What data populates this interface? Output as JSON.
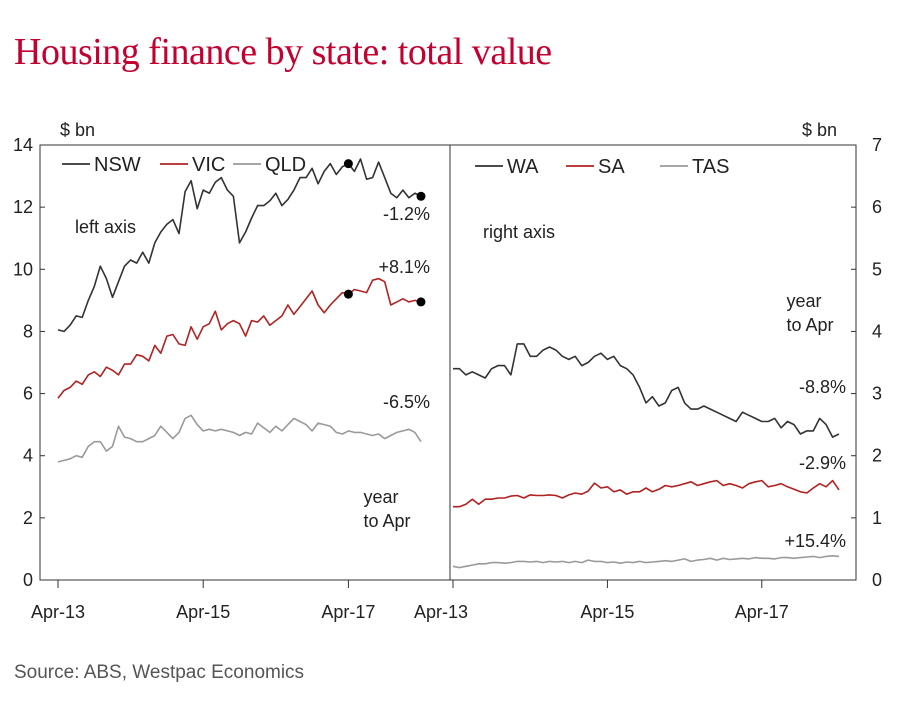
{
  "title": "Housing finance by state: total value",
  "source": "Source: ABS, Westpac Economics",
  "colors": {
    "title": "#c3002f",
    "dark": "#333333",
    "red": "#b22222",
    "grey": "#9a9a9a"
  },
  "chart_data": [
    {
      "type": "line",
      "panel": "left",
      "ylabel": "$ bn",
      "ylim": [
        0,
        14
      ],
      "yticks": [
        "0",
        "2",
        "4",
        "6",
        "8",
        "10",
        "12",
        "14"
      ],
      "xticks": [
        "Apr-13",
        "Apr-15",
        "Apr-17"
      ],
      "x_dates": [
        "Apr-13",
        "May-13",
        "Jun-13",
        "Jul-13",
        "Aug-13",
        "Sep-13",
        "Oct-13",
        "Nov-13",
        "Dec-13",
        "Jan-14",
        "Feb-14",
        "Mar-14",
        "Apr-14",
        "May-14",
        "Jun-14",
        "Jul-14",
        "Aug-14",
        "Sep-14",
        "Oct-14",
        "Nov-14",
        "Dec-14",
        "Jan-15",
        "Feb-15",
        "Mar-15",
        "Apr-15",
        "May-15",
        "Jun-15",
        "Jul-15",
        "Aug-15",
        "Sep-15",
        "Oct-15",
        "Nov-15",
        "Dec-15",
        "Jan-16",
        "Feb-16",
        "Mar-16",
        "Apr-16",
        "May-16",
        "Jun-16",
        "Jul-16",
        "Aug-16",
        "Sep-16",
        "Oct-16",
        "Nov-16",
        "Dec-16",
        "Jan-17",
        "Feb-17",
        "Mar-17",
        "Apr-17",
        "May-17",
        "Jun-17",
        "Jul-17",
        "Aug-17",
        "Sep-17",
        "Oct-17",
        "Nov-17",
        "Dec-17",
        "Jan-18",
        "Feb-18",
        "Mar-18",
        "Apr-18"
      ],
      "annotation_left": "left axis",
      "annotation_year": [
        "year",
        "to Apr"
      ],
      "series": [
        {
          "name": "NSW",
          "color": "#333333",
          "change_label": "-1.2%",
          "markers": [
            "Apr-17",
            "Apr-18"
          ],
          "values": [
            8.05,
            8.0,
            8.2,
            8.5,
            8.45,
            9.0,
            9.45,
            10.1,
            9.7,
            9.1,
            9.6,
            10.1,
            10.3,
            10.2,
            10.55,
            10.2,
            10.85,
            11.2,
            11.45,
            11.6,
            11.15,
            12.5,
            12.85,
            11.95,
            12.55,
            12.45,
            12.8,
            12.95,
            12.55,
            12.35,
            10.85,
            11.2,
            11.65,
            12.05,
            12.05,
            12.2,
            12.45,
            12.05,
            12.25,
            12.55,
            12.95,
            12.95,
            13.25,
            12.75,
            13.15,
            13.4,
            13.05,
            13.3,
            13.4,
            13.15,
            13.55,
            12.9,
            12.95,
            13.45,
            12.95,
            12.45,
            12.3,
            12.55,
            12.3,
            12.45,
            12.35
          ]
        },
        {
          "name": "VIC",
          "color": "#b22222",
          "change_label": "+8.1%",
          "markers": [
            "Apr-17",
            "Apr-18"
          ],
          "values": [
            5.85,
            6.1,
            6.2,
            6.4,
            6.3,
            6.6,
            6.7,
            6.55,
            6.85,
            6.75,
            6.6,
            6.95,
            6.95,
            7.25,
            7.2,
            7.05,
            7.55,
            7.3,
            7.85,
            7.9,
            7.6,
            7.55,
            8.15,
            7.75,
            8.15,
            8.25,
            8.65,
            8.05,
            8.25,
            8.35,
            8.25,
            7.85,
            8.35,
            8.3,
            8.5,
            8.2,
            8.35,
            8.5,
            8.85,
            8.55,
            8.8,
            9.05,
            9.3,
            8.85,
            8.6,
            8.85,
            9.05,
            9.25,
            9.2,
            9.35,
            9.3,
            9.25,
            9.65,
            9.7,
            9.6,
            8.85,
            8.95,
            9.05,
            8.95,
            9.0,
            8.95
          ]
        },
        {
          "name": "QLD",
          "color": "#9a9a9a",
          "change_label": "-6.5%",
          "values": [
            3.8,
            3.85,
            3.9,
            4.0,
            3.95,
            4.3,
            4.45,
            4.45,
            4.15,
            4.3,
            4.95,
            4.6,
            4.55,
            4.45,
            4.45,
            4.55,
            4.65,
            4.95,
            4.75,
            4.55,
            4.75,
            5.2,
            5.3,
            5.0,
            4.8,
            4.85,
            4.8,
            4.85,
            4.8,
            4.75,
            4.65,
            4.75,
            4.7,
            5.05,
            4.9,
            4.75,
            4.95,
            4.8,
            5.0,
            5.2,
            5.1,
            5.0,
            4.8,
            5.05,
            5.0,
            4.95,
            4.75,
            4.7,
            4.8,
            4.75,
            4.75,
            4.7,
            4.65,
            4.7,
            4.55,
            4.65,
            4.75,
            4.8,
            4.85,
            4.75,
            4.45
          ]
        }
      ]
    },
    {
      "type": "line",
      "panel": "right",
      "ylabel": "$ bn",
      "ylim": [
        0,
        7
      ],
      "yticks": [
        "0",
        "1",
        "2",
        "3",
        "4",
        "5",
        "6",
        "7"
      ],
      "xticks": [
        "Apr-13",
        "Apr-15",
        "Apr-17"
      ],
      "x_dates": [
        "Apr-13",
        "May-13",
        "Jun-13",
        "Jul-13",
        "Aug-13",
        "Sep-13",
        "Oct-13",
        "Nov-13",
        "Dec-13",
        "Jan-14",
        "Feb-14",
        "Mar-14",
        "Apr-14",
        "May-14",
        "Jun-14",
        "Jul-14",
        "Aug-14",
        "Sep-14",
        "Oct-14",
        "Nov-14",
        "Dec-14",
        "Jan-15",
        "Feb-15",
        "Mar-15",
        "Apr-15",
        "May-15",
        "Jun-15",
        "Jul-15",
        "Aug-15",
        "Sep-15",
        "Oct-15",
        "Nov-15",
        "Dec-15",
        "Jan-16",
        "Feb-16",
        "Mar-16",
        "Apr-16",
        "May-16",
        "Jun-16",
        "Jul-16",
        "Aug-16",
        "Sep-16",
        "Oct-16",
        "Nov-16",
        "Dec-16",
        "Jan-17",
        "Feb-17",
        "Mar-17",
        "Apr-17",
        "May-17",
        "Jun-17",
        "Jul-17",
        "Aug-17",
        "Sep-17",
        "Oct-17",
        "Nov-17",
        "Dec-17",
        "Jan-18",
        "Feb-18",
        "Mar-18",
        "Apr-18"
      ],
      "annotation_right": "right axis",
      "annotation_year": [
        "year",
        "to Apr"
      ],
      "series": [
        {
          "name": "WA",
          "color": "#333333",
          "change_label": "-8.8%",
          "values": [
            3.4,
            3.4,
            3.3,
            3.35,
            3.3,
            3.25,
            3.4,
            3.45,
            3.45,
            3.3,
            3.8,
            3.8,
            3.6,
            3.6,
            3.7,
            3.75,
            3.7,
            3.6,
            3.55,
            3.6,
            3.45,
            3.5,
            3.6,
            3.65,
            3.55,
            3.6,
            3.45,
            3.4,
            3.3,
            3.1,
            2.85,
            2.95,
            2.8,
            2.85,
            3.05,
            3.1,
            2.85,
            2.75,
            2.75,
            2.8,
            2.75,
            2.7,
            2.65,
            2.6,
            2.55,
            2.7,
            2.65,
            2.6,
            2.55,
            2.55,
            2.6,
            2.45,
            2.55,
            2.5,
            2.35,
            2.4,
            2.4,
            2.6,
            2.5,
            2.3,
            2.35
          ]
        },
        {
          "name": "SA",
          "color": "#b22222",
          "change_label": "-2.9%",
          "values": [
            1.18,
            1.18,
            1.22,
            1.3,
            1.22,
            1.3,
            1.3,
            1.32,
            1.32,
            1.35,
            1.36,
            1.32,
            1.37,
            1.36,
            1.36,
            1.37,
            1.36,
            1.32,
            1.37,
            1.4,
            1.38,
            1.43,
            1.56,
            1.48,
            1.5,
            1.42,
            1.45,
            1.38,
            1.42,
            1.42,
            1.48,
            1.42,
            1.46,
            1.52,
            1.5,
            1.52,
            1.55,
            1.58,
            1.52,
            1.55,
            1.58,
            1.6,
            1.52,
            1.55,
            1.52,
            1.48,
            1.55,
            1.58,
            1.6,
            1.5,
            1.52,
            1.55,
            1.5,
            1.46,
            1.42,
            1.4,
            1.48,
            1.55,
            1.5,
            1.6,
            1.45
          ]
        },
        {
          "name": "TAS",
          "color": "#9a9a9a",
          "change_label": "+15.4%",
          "values": [
            0.22,
            0.2,
            0.22,
            0.24,
            0.26,
            0.26,
            0.28,
            0.28,
            0.27,
            0.28,
            0.3,
            0.3,
            0.29,
            0.3,
            0.28,
            0.3,
            0.29,
            0.3,
            0.28,
            0.3,
            0.28,
            0.32,
            0.3,
            0.3,
            0.28,
            0.29,
            0.27,
            0.29,
            0.28,
            0.3,
            0.28,
            0.29,
            0.3,
            0.31,
            0.3,
            0.32,
            0.34,
            0.3,
            0.32,
            0.33,
            0.35,
            0.32,
            0.35,
            0.33,
            0.34,
            0.35,
            0.34,
            0.36,
            0.35,
            0.35,
            0.34,
            0.36,
            0.36,
            0.35,
            0.36,
            0.37,
            0.38,
            0.36,
            0.38,
            0.39,
            0.38
          ]
        }
      ]
    }
  ]
}
